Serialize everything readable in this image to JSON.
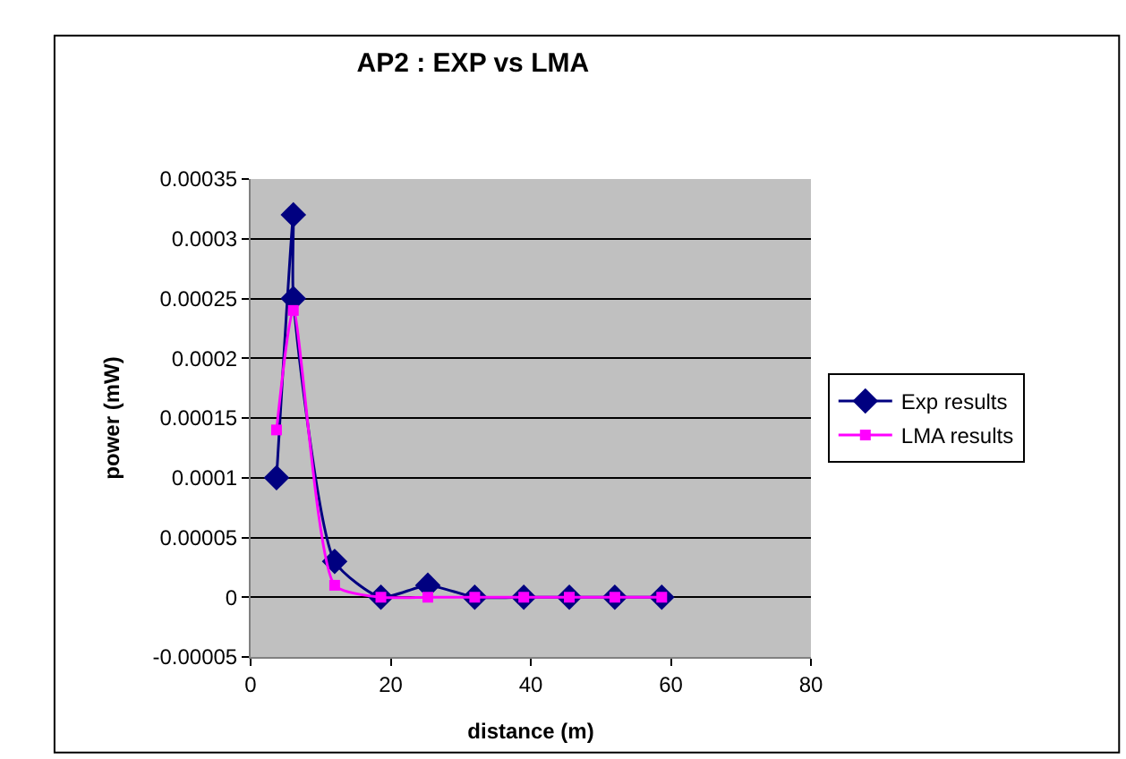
{
  "chart_data": {
    "type": "line",
    "title": "AP2 : EXP vs LMA",
    "xlabel": "distance (m)",
    "ylabel": "power (mW)",
    "xlim": [
      0,
      80
    ],
    "xticks": [
      0,
      20,
      40,
      60,
      80
    ],
    "ylim": [
      -5e-05,
      0.00035
    ],
    "yticks": [
      {
        "value": -5e-05,
        "label": "-0.00005"
      },
      0,
      {
        "value": 5e-05,
        "label": "0.00005"
      },
      0.0001,
      0.00015,
      0.0002,
      0.00025,
      0.0003,
      0.00035
    ],
    "grid": "y",
    "legend": "right",
    "series": [
      {
        "name": "Exp results",
        "color": "#000080",
        "marker": "diamond",
        "x": [
          3.7,
          6.1,
          6.1,
          12,
          18.6,
          25.3,
          32,
          39,
          45.5,
          52,
          58.7
        ],
        "values": [
          0.0001,
          0.00032,
          0.00025,
          3e-05,
          0,
          1e-05,
          0,
          0,
          0,
          0,
          0
        ]
      },
      {
        "name": "LMA results",
        "color": "#ff00ff",
        "marker": "square",
        "x": [
          3.7,
          6.1,
          12,
          18.6,
          25.3,
          32,
          39,
          45.5,
          52,
          58.7
        ],
        "values": [
          0.00014,
          0.00024,
          1e-05,
          0,
          0,
          0,
          0,
          0,
          0,
          0
        ]
      }
    ]
  }
}
